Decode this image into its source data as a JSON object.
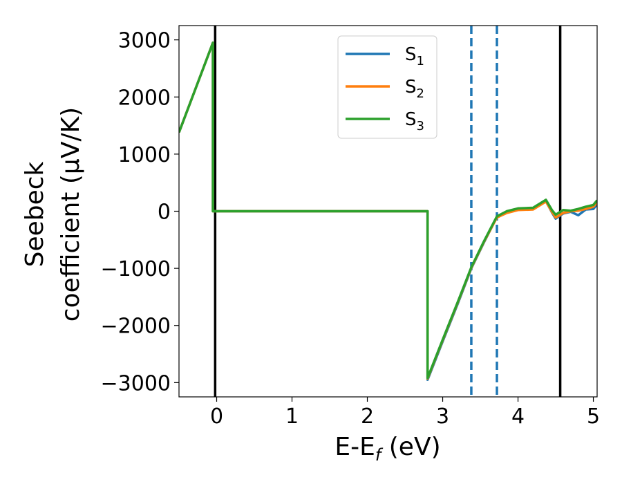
{
  "chart_data": {
    "type": "line",
    "xlabel": {
      "base": "E-E",
      "sub": "f",
      "tail": " (eV)"
    },
    "ylabel": {
      "line1": "Seebeck",
      "line2": "coefficient  (μV/K)"
    },
    "xlim": [
      -0.5,
      5.05
    ],
    "ylim": [
      -3250,
      3250
    ],
    "xticks": [
      0,
      1,
      2,
      3,
      4,
      5
    ],
    "xtick_labels": [
      "0",
      "1",
      "2",
      "3",
      "4",
      "5"
    ],
    "yticks": [
      3000,
      2000,
      1000,
      0,
      -1000,
      -2000,
      -3000
    ],
    "ytick_labels": [
      "3000",
      "2000",
      "1000",
      "0",
      "−1000",
      "−2000",
      "−3000"
    ],
    "grid": false,
    "legend_position": "top-center",
    "vlines_solid": [
      -0.02,
      4.56
    ],
    "vlines_dashed": [
      3.38,
      3.72
    ],
    "colors": {
      "S1": "#1f77b4",
      "S2": "#ff7f0e",
      "S3": "#2ca02c",
      "solid_line": "#000000",
      "dashed_line": "#1f77b4"
    },
    "series": [
      {
        "name": "S",
        "sub": "1",
        "color": "#1f77b4",
        "x": [
          -0.5,
          -0.05,
          -0.05,
          0.5,
          1.0,
          1.5,
          2.0,
          2.5,
          2.8,
          2.8,
          3.0,
          3.2,
          3.38,
          3.55,
          3.72,
          3.85,
          4.0,
          4.2,
          4.37,
          4.45,
          4.5,
          4.6,
          4.7,
          4.8,
          4.9,
          5.0,
          5.05
        ],
        "y": [
          1380,
          2950,
          0,
          0,
          0,
          0,
          0,
          0,
          0,
          -2950,
          -2280,
          -1620,
          -1000,
          -540,
          -100,
          -10,
          40,
          40,
          180,
          -20,
          -130,
          -40,
          -10,
          -70,
          30,
          40,
          120
        ]
      },
      {
        "name": "S",
        "sub": "2",
        "color": "#ff7f0e",
        "x": [
          -0.5,
          -0.05,
          -0.05,
          0.5,
          1.0,
          1.5,
          2.0,
          2.5,
          2.8,
          2.8,
          3.0,
          3.2,
          3.38,
          3.55,
          3.72,
          3.85,
          4.0,
          4.2,
          4.37,
          4.45,
          4.5,
          4.6,
          4.7,
          4.8,
          4.9,
          5.0,
          5.05
        ],
        "y": [
          1380,
          2950,
          0,
          0,
          0,
          0,
          0,
          0,
          0,
          -2930,
          -2260,
          -1600,
          -990,
          -530,
          -110,
          -30,
          20,
          30,
          170,
          -10,
          -110,
          -30,
          0,
          10,
          40,
          80,
          150
        ]
      },
      {
        "name": "S",
        "sub": "3",
        "color": "#2ca02c",
        "x": [
          -0.5,
          -0.05,
          -0.05,
          0.5,
          1.0,
          1.5,
          2.0,
          2.5,
          2.8,
          2.8,
          3.0,
          3.2,
          3.38,
          3.55,
          3.72,
          3.85,
          4.0,
          4.2,
          4.37,
          4.45,
          4.5,
          4.6,
          4.7,
          4.8,
          4.9,
          5.0,
          5.05
        ],
        "y": [
          1380,
          2950,
          0,
          0,
          0,
          0,
          0,
          0,
          0,
          -2920,
          -2250,
          -1590,
          -980,
          -520,
          -90,
          0,
          50,
          60,
          200,
          20,
          -60,
          20,
          10,
          40,
          80,
          110,
          190
        ]
      }
    ]
  }
}
